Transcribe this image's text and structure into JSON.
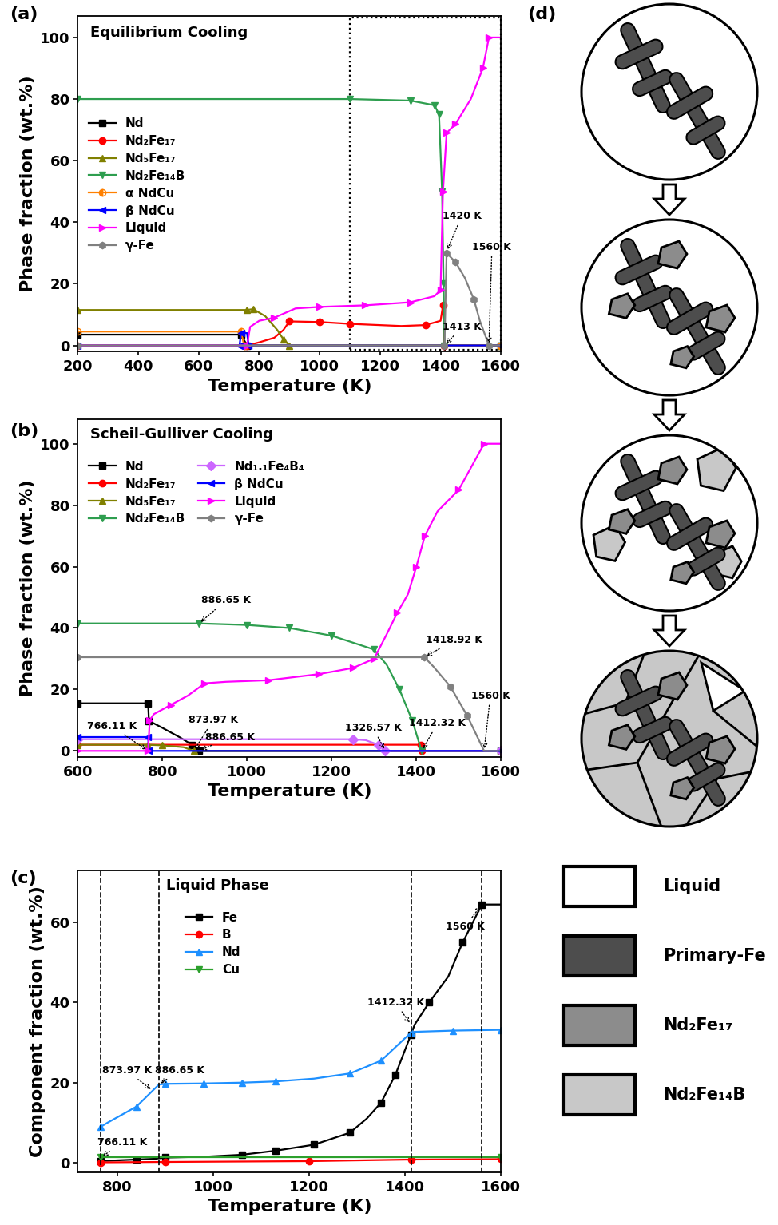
{
  "chart_data": [
    {
      "type": "line",
      "panel_label": "(a)",
      "title": "Equilibrium Cooling",
      "x_label": "Temperature (K)",
      "y_label": "Phase fraction (wt.%)",
      "xlim": [
        200,
        1600
      ],
      "xticks": [
        200,
        400,
        600,
        800,
        1000,
        1200,
        1400,
        1600
      ],
      "ylim": [
        -2,
        107
      ],
      "yticks": [
        0,
        20,
        40,
        60,
        80,
        100
      ],
      "legend": "upper left",
      "highlight_x": [
        1100,
        1600
      ],
      "series": [
        {
          "name": "Nd",
          "color": "#000000",
          "marker": "square",
          "x": [
            200,
            740,
            760,
            1600
          ],
          "values": [
            3.5,
            3.5,
            0,
            0
          ]
        },
        {
          "name": "Nd₂Fe₁₇",
          "color": "#ff0000",
          "marker": "circle",
          "x": [
            200,
            760,
            800,
            850,
            880,
            900,
            1000,
            1100,
            1270,
            1350,
            1400,
            1408,
            1413,
            1600
          ],
          "values": [
            0,
            0,
            1,
            2.5,
            5,
            7.8,
            7.6,
            7,
            6.3,
            6.6,
            8,
            13,
            0,
            0
          ]
        },
        {
          "name": "Nd₅Fe₁₇",
          "color": "#808000",
          "marker": "triangle_up",
          "x": [
            200,
            760,
            780,
            820,
            860,
            880,
            900,
            1600
          ],
          "values": [
            11.5,
            11.5,
            11.8,
            9.5,
            5,
            2,
            0,
            0
          ]
        },
        {
          "name": "Nd₂Fe₁₄B",
          "color": "#2e9e4f",
          "marker": "triangle_down",
          "x": [
            200,
            1100,
            1300,
            1380,
            1395,
            1405,
            1410,
            1413,
            1600
          ],
          "values": [
            80,
            80,
            79.5,
            78,
            75,
            50,
            20,
            0,
            0
          ]
        },
        {
          "name": "α NdCu",
          "color": "#ff8000",
          "marker": "half_circle",
          "x": [
            200,
            740,
            750,
            1600
          ],
          "values": [
            4.5,
            4.5,
            0,
            0
          ]
        },
        {
          "name": "β NdCu",
          "color": "#0000ff",
          "marker": "triangle_left",
          "x": [
            200,
            735,
            740,
            760,
            765,
            1600
          ],
          "values": [
            0,
            0,
            4,
            4,
            0,
            0
          ]
        },
        {
          "name": "Liquid",
          "color": "#ff00ff",
          "marker": "triangle_right",
          "x": [
            200,
            760,
            770,
            800,
            850,
            920,
            1000,
            1150,
            1300,
            1380,
            1400,
            1408,
            1420,
            1450,
            1500,
            1540,
            1560,
            1600
          ],
          "values": [
            0,
            0,
            6,
            8,
            9,
            12,
            12.5,
            13,
            14,
            16,
            18,
            50,
            69,
            72,
            80,
            90,
            100,
            100
          ]
        },
        {
          "name": "γ-Fe",
          "color": "#808080",
          "marker": "hexagon",
          "x": [
            200,
            1413,
            1420,
            1450,
            1480,
            1510,
            1530,
            1560,
            1600
          ],
          "values": [
            0,
            0,
            30,
            27,
            22,
            15,
            8,
            0,
            0
          ]
        }
      ],
      "annotations": [
        {
          "text": "1420 K",
          "x": 1420,
          "y": 30.5,
          "text_x": 1470,
          "text_y": 42
        },
        {
          "text": "1560 K",
          "x": 1560,
          "y": 0,
          "text_x": 1570,
          "text_y": 32
        },
        {
          "text": "1413 K",
          "x": 1413,
          "y": 0,
          "text_x": 1472,
          "text_y": 6
        }
      ]
    },
    {
      "type": "line",
      "panel_label": "(b)",
      "title": "Scheil-Gulliver Cooling",
      "x_label": "Temperature (K)",
      "y_label": "Phase fraction (wt.%)",
      "xlim": [
        600,
        1600
      ],
      "xticks": [
        600,
        800,
        1000,
        1200,
        1400,
        1600
      ],
      "ylim": [
        -2,
        108
      ],
      "yticks": [
        0,
        20,
        40,
        60,
        80,
        100
      ],
      "legend": "upper left",
      "series": [
        {
          "name": "Nd",
          "color": "#000000",
          "marker": "square",
          "x": [
            600,
            766.11,
            768,
            800,
            840,
            870,
            886.65,
            1600
          ],
          "values": [
            15.5,
            15.5,
            9.8,
            7.5,
            4.5,
            2,
            0,
            0
          ]
        },
        {
          "name": "Nd₂Fe₁₇",
          "color": "#ff0000",
          "marker": "circle",
          "x": [
            600,
            1410,
            1413,
            1600
          ],
          "values": [
            2,
            2,
            0,
            0
          ]
        },
        {
          "name": "Nd₅Fe₁₇",
          "color": "#808000",
          "marker": "triangle_up",
          "x": [
            600,
            766.11,
            800,
            850,
            873.97,
            1600
          ],
          "values": [
            2,
            2,
            1.8,
            1.2,
            0,
            0
          ]
        },
        {
          "name": "Nd₂Fe₁₄B",
          "color": "#2e9e4f",
          "marker": "triangle_down",
          "x": [
            600,
            886.65,
            1000,
            1100,
            1200,
            1300,
            1330,
            1360,
            1390,
            1412.32,
            1600
          ],
          "values": [
            41.5,
            41.5,
            41,
            40,
            37.5,
            33,
            28,
            20,
            10,
            0,
            0
          ]
        },
        {
          "name": "Nd₁.₁Fe₄B₄",
          "color": "#cc66ff",
          "marker": "diamond",
          "x": [
            600,
            1250,
            1280,
            1310,
            1326.57,
            1600
          ],
          "values": [
            3.8,
            3.8,
            3.5,
            2,
            0,
            0
          ]
        },
        {
          "name": "β NdCu",
          "color": "#0000ff",
          "marker": "triangle_left",
          "x": [
            600,
            766.11,
            768,
            1600
          ],
          "values": [
            4.5,
            4.5,
            0,
            0
          ]
        },
        {
          "name": "Liquid",
          "color": "#ff00ff",
          "marker": "triangle_right",
          "x": [
            600,
            766.11,
            770,
            780,
            820,
            860,
            900,
            950,
            1050,
            1170,
            1250,
            1300,
            1330,
            1355,
            1380,
            1400,
            1420,
            1450,
            1500,
            1560,
            1600
          ],
          "values": [
            0,
            0,
            10,
            12,
            15,
            18,
            22,
            22.5,
            23,
            25,
            27,
            30,
            38,
            45,
            51,
            60,
            70,
            78,
            85,
            100,
            100
          ]
        },
        {
          "name": "γ-Fe",
          "color": "#808080",
          "marker": "hexagon",
          "x": [
            600,
            1418.92,
            1440,
            1480,
            1520,
            1560,
            1600
          ],
          "values": [
            30.5,
            30.5,
            27.5,
            21,
            11.5,
            0,
            0
          ]
        }
      ],
      "annotations": [
        {
          "text": "886.65 K",
          "x": 886.65,
          "y": 41.5,
          "text_x": 950,
          "text_y": 49
        },
        {
          "text": "766.11 K",
          "x": 766.11,
          "y": 0,
          "text_x": 680,
          "text_y": 8
        },
        {
          "text": "873.97 K",
          "x": 873.97,
          "y": 0,
          "text_x": 920,
          "text_y": 10
        },
        {
          "text": "886.65 K",
          "x": 886.65,
          "y": 0,
          "text_x": 960,
          "text_y": 4.5
        },
        {
          "text": "1326.57 K",
          "x": 1326.57,
          "y": 0,
          "text_x": 1298,
          "text_y": 7.5
        },
        {
          "text": "1412.32 K",
          "x": 1412.32,
          "y": 0,
          "text_x": 1450,
          "text_y": 9
        },
        {
          "text": "1418.92 K",
          "x": 1418.92,
          "y": 30.5,
          "text_x": 1490,
          "text_y": 36
        },
        {
          "text": "1560 K",
          "x": 1560,
          "y": 0,
          "text_x": 1575,
          "text_y": 18
        }
      ]
    },
    {
      "type": "line",
      "panel_label": "(c)",
      "title": "Liquid Phase",
      "x_label": "Temperature (K)",
      "y_label": "Component fraction (wt.%)",
      "xlim": [
        718,
        1600
      ],
      "xticks": [
        800,
        1000,
        1200,
        1400,
        1600
      ],
      "ylim": [
        -2.4,
        73
      ],
      "yticks": [
        0,
        20,
        40,
        60
      ],
      "legend": "upper center",
      "vlines": [
        766.11,
        886.65,
        1412.32,
        1560
      ],
      "series": [
        {
          "name": "Fe",
          "color": "#000000",
          "marker": "square",
          "x": [
            766.11,
            780,
            840,
            880,
            900,
            980,
            1060,
            1130,
            1210,
            1285,
            1320,
            1350,
            1380,
            1412.32,
            1420,
            1450,
            1490,
            1520,
            1560,
            1600
          ],
          "values": [
            0.5,
            0.5,
            0.8,
            1,
            1.3,
            1.5,
            2,
            3,
            4.5,
            7.5,
            11,
            15,
            22,
            32,
            34.5,
            40,
            46.5,
            55,
            64.5,
            64.5
          ]
        },
        {
          "name": "B",
          "color": "#ff0000",
          "marker": "circle",
          "x": [
            766.11,
            900,
            1200,
            1412.32,
            1600
          ],
          "values": [
            0.1,
            0.2,
            0.4,
            0.8,
            0.9
          ]
        },
        {
          "name": "Nd",
          "color": "#1e90ff",
          "marker": "triangle_up",
          "x": [
            766.11,
            780,
            840,
            874,
            887,
            900,
            980,
            1060,
            1130,
            1210,
            1285,
            1320,
            1350,
            1412.32,
            1420,
            1500,
            1600
          ],
          "values": [
            9,
            10,
            14,
            18,
            19.5,
            19.7,
            19.8,
            20,
            20.3,
            21,
            22.3,
            24,
            25.5,
            32.5,
            32.7,
            33,
            33.2
          ]
        },
        {
          "name": "Cu",
          "color": "#2ca02c",
          "marker": "triangle_down",
          "x": [
            766.11,
            1600
          ],
          "values": [
            1.3,
            1.3
          ]
        }
      ],
      "annotations": [
        {
          "text": "1560 K",
          "x": 1560,
          "y": 64.5,
          "text_x": 1525,
          "text_y": 59
        },
        {
          "text": "1412.32 K",
          "x": 1412.32,
          "y": 34.5,
          "text_x": 1380,
          "text_y": 40
        },
        {
          "text": "873.97 K",
          "x": 873.97,
          "y": 18,
          "text_x": 820,
          "text_y": 23
        },
        {
          "text": "886.65 K",
          "x": 886.65,
          "y": 19.5,
          "text_x": 930,
          "text_y": 23
        },
        {
          "text": "766.11 K",
          "x": 766.11,
          "y": 1.3,
          "text_x": 810,
          "text_y": 5
        }
      ]
    }
  ],
  "diagram": {
    "panel_label": "(d)",
    "legend": [
      {
        "label": "Liquid",
        "color": "#ffffff"
      },
      {
        "label": "Primary-Fe",
        "color": "#4d4d4d"
      },
      {
        "label": "Nd₂Fe₁₇",
        "color": "#8c8c8c"
      },
      {
        "label": "Nd₂Fe₁₄B",
        "color": "#c8c8c8"
      }
    ]
  }
}
